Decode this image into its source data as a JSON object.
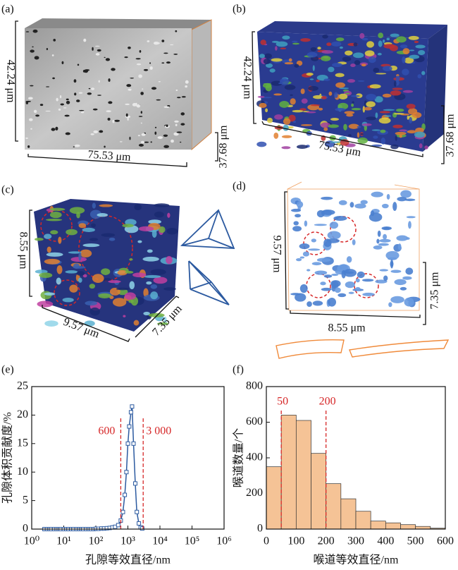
{
  "panels": [
    {
      "label": "(a)",
      "dims": [
        "42.24 μm",
        "75.53 μm",
        "37.68 μm"
      ]
    },
    {
      "label": "(b)",
      "dims": [
        "42.24 μm",
        "75.53 μm",
        "37.68 μm"
      ]
    },
    {
      "label": "(c)",
      "dims": [
        "8.55 μm",
        "9.57 μm",
        "7.35 μm"
      ]
    },
    {
      "label": "(d)",
      "dims": [
        "9.57 μm",
        "7.35 μm",
        "8.55 μm"
      ]
    }
  ],
  "chart_data": [
    {
      "type": "line",
      "panel_label": "(e)",
      "xlabel": "孔隙等效直径/nm",
      "ylabel": "孔隙体积贡献度/%",
      "x": [
        2.5,
        3,
        3.5,
        4,
        5,
        6,
        7,
        8,
        10,
        12,
        14,
        17,
        20,
        25,
        30,
        35,
        40,
        50,
        60,
        70,
        85,
        100,
        120,
        150,
        180,
        220,
        270,
        330,
        400,
        500,
        600,
        700,
        800,
        900,
        1000,
        1100,
        1250,
        1350,
        1500,
        1700,
        1900,
        2200,
        2500,
        2800
      ],
      "values": [
        0,
        0,
        0,
        0,
        0,
        0,
        0,
        0,
        0,
        0,
        0,
        0,
        0,
        0,
        0,
        0,
        0,
        0,
        0,
        0,
        0,
        0.05,
        0.05,
        0.1,
        0.1,
        0.15,
        0.2,
        0.3,
        0.4,
        0.7,
        1.5,
        3,
        6,
        10,
        15,
        18,
        20.5,
        21.5,
        15,
        8,
        3,
        1,
        0.3,
        0.1
      ],
      "color": "#2c5aa0",
      "xscale": "log",
      "xlim": [
        1,
        1000000
      ],
      "xticks": [
        {
          "value": 1,
          "label": "10⁰"
        },
        {
          "value": 10,
          "label": "10¹"
        },
        {
          "value": 100,
          "label": "10²"
        },
        {
          "value": 1000,
          "label": "10³"
        },
        {
          "value": 10000,
          "label": "10⁴"
        },
        {
          "value": 100000,
          "label": "10⁵"
        },
        {
          "value": 1000000,
          "label": "10⁶"
        }
      ],
      "ylim": [
        0,
        25
      ],
      "yticks": [
        0,
        5,
        10,
        15,
        20,
        25
      ],
      "annotations": [
        {
          "x": 600,
          "label": "600"
        },
        {
          "x": 3000,
          "label": "3 000"
        }
      ],
      "annotation_color": "#d62728"
    },
    {
      "type": "histogram",
      "panel_label": "(f)",
      "xlabel": "喉道等效直径/nm",
      "ylabel": "喉道数量/个",
      "bins": [
        0,
        50,
        100,
        150,
        200,
        250,
        300,
        350,
        400,
        450,
        500,
        550,
        600
      ],
      "values": [
        350,
        640,
        610,
        425,
        255,
        170,
        100,
        45,
        35,
        25,
        15,
        5
      ],
      "color": "#f5c396",
      "xlim": [
        0,
        600
      ],
      "xticks": [
        0,
        100,
        200,
        300,
        400,
        500,
        600
      ],
      "ylim": [
        0,
        800
      ],
      "yticks": [
        0,
        200,
        400,
        600,
        800
      ],
      "annotations": [
        {
          "x": 50,
          "label": "50"
        },
        {
          "x": 200,
          "label": "200"
        }
      ],
      "annotation_color": "#d62728"
    }
  ]
}
